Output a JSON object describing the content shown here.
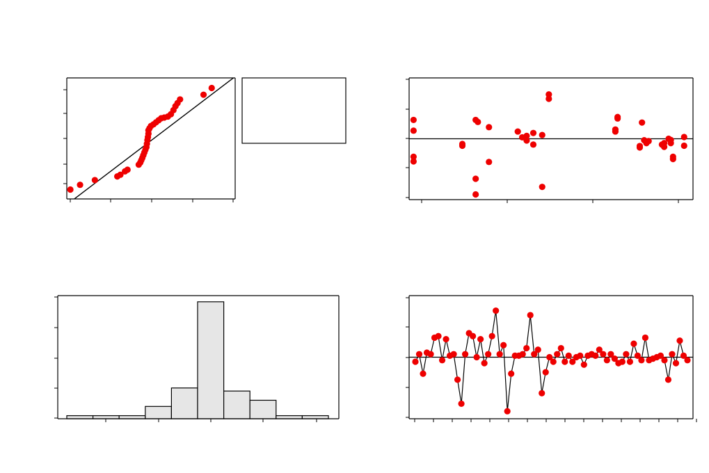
{
  "colors": {
    "point": "#ee0000",
    "line": "#000000",
    "bar_fill": "#e6e6e6",
    "frame": "#000000",
    "background": "#ffffff"
  },
  "chart_data": [
    {
      "type": "scatter",
      "subtype": "normal-probability-plot",
      "title": "",
      "xlabel": "",
      "ylabel": "",
      "xlim": [
        -1.6,
        1.7
      ],
      "ylim": [
        -1.7,
        1.9
      ],
      "fit_line": [
        [
          -1.6,
          -1.87
        ],
        [
          1.7,
          1.94
        ]
      ],
      "points": [
        [
          -1.53,
          -1.42
        ],
        [
          -1.34,
          -1.28
        ],
        [
          -1.05,
          -1.14
        ],
        [
          -0.61,
          -1.03
        ],
        [
          -0.55,
          -0.98
        ],
        [
          -0.46,
          -0.88
        ],
        [
          -0.41,
          -0.83
        ],
        [
          -0.19,
          -0.68
        ],
        [
          -0.16,
          -0.62
        ],
        [
          -0.14,
          -0.55
        ],
        [
          -0.12,
          -0.48
        ],
        [
          -0.1,
          -0.4
        ],
        [
          -0.08,
          -0.32
        ],
        [
          -0.06,
          -0.24
        ],
        [
          -0.04,
          -0.16
        ],
        [
          -0.03,
          -0.06
        ],
        [
          -0.02,
          0.05
        ],
        [
          -0.01,
          0.14
        ],
        [
          0.0,
          0.24
        ],
        [
          0.0,
          0.34
        ],
        [
          0.02,
          0.4
        ],
        [
          0.05,
          0.47
        ],
        [
          0.1,
          0.52
        ],
        [
          0.15,
          0.58
        ],
        [
          0.2,
          0.64
        ],
        [
          0.25,
          0.7
        ],
        [
          0.31,
          0.72
        ],
        [
          0.38,
          0.75
        ],
        [
          0.44,
          0.82
        ],
        [
          0.49,
          0.94
        ],
        [
          0.53,
          1.06
        ],
        [
          0.57,
          1.15
        ],
        [
          0.62,
          1.26
        ],
        [
          1.08,
          1.4
        ],
        [
          1.24,
          1.6
        ]
      ]
    },
    {
      "type": "legend-box",
      "entries": []
    },
    {
      "type": "scatter",
      "subtype": "residuals-vs-fits",
      "title": "",
      "xlabel": "",
      "ylabel": "",
      "xlim": [
        -0.6,
        5.8
      ],
      "ylim": [
        -2.1,
        2.1
      ],
      "reference_y": 0,
      "points": [
        [
          -0.5,
          0.65
        ],
        [
          -0.5,
          0.28
        ],
        [
          -0.5,
          -0.62
        ],
        [
          -0.5,
          -0.78
        ],
        [
          0.6,
          -0.18
        ],
        [
          0.6,
          -0.24
        ],
        [
          0.9,
          0.65
        ],
        [
          0.95,
          0.58
        ],
        [
          0.9,
          -1.38
        ],
        [
          0.9,
          -1.92
        ],
        [
          1.2,
          0.4
        ],
        [
          1.2,
          -0.8
        ],
        [
          1.85,
          0.25
        ],
        [
          1.95,
          0.05
        ],
        [
          2.05,
          0.1
        ],
        [
          2.05,
          -0.06
        ],
        [
          2.2,
          0.2
        ],
        [
          2.2,
          -0.2
        ],
        [
          2.4,
          0.13
        ],
        [
          2.55,
          1.53
        ],
        [
          2.55,
          1.38
        ],
        [
          2.4,
          -1.66
        ],
        [
          4.1,
          0.75
        ],
        [
          4.1,
          0.7
        ],
        [
          4.05,
          0.32
        ],
        [
          4.05,
          0.25
        ],
        [
          4.65,
          0.56
        ],
        [
          4.6,
          -0.25
        ],
        [
          4.6,
          -0.3
        ],
        [
          4.7,
          -0.05
        ],
        [
          4.75,
          -0.15
        ],
        [
          4.8,
          -0.08
        ],
        [
          5.1,
          -0.2
        ],
        [
          5.15,
          -0.28
        ],
        [
          5.25,
          0.0
        ],
        [
          5.3,
          -0.04
        ],
        [
          5.3,
          -0.15
        ],
        [
          5.35,
          -0.62
        ],
        [
          5.35,
          -0.7
        ],
        [
          5.6,
          0.06
        ],
        [
          5.6,
          -0.24
        ],
        [
          5.15,
          -0.15
        ]
      ]
    },
    {
      "type": "bar",
      "subtype": "histogram",
      "title": "",
      "xlabel": "",
      "ylabel": "",
      "ylim": [
        0,
        20
      ],
      "values": [
        0.5,
        0.5,
        0.5,
        2,
        5,
        19,
        4.5,
        3,
        0.5,
        0.5
      ]
    },
    {
      "type": "line",
      "subtype": "residuals-vs-order",
      "title": "",
      "xlabel": "",
      "ylabel": "",
      "ylim": [
        -2.05,
        2.05
      ],
      "reference_y": 0,
      "values": [
        -0.15,
        0.1,
        -0.55,
        0.15,
        0.1,
        0.65,
        0.7,
        -0.1,
        0.6,
        0.05,
        0.1,
        -0.75,
        -1.55,
        0.1,
        0.8,
        0.7,
        0.0,
        0.6,
        -0.2,
        0.1,
        0.7,
        1.55,
        0.1,
        0.4,
        -1.8,
        -0.55,
        0.05,
        0.05,
        0.1,
        0.3,
        1.4,
        0.1,
        0.25,
        -1.2,
        -0.5,
        0.0,
        -0.15,
        0.1,
        0.3,
        -0.15,
        0.05,
        -0.15,
        0.0,
        0.05,
        -0.25,
        0.05,
        0.1,
        0.05,
        0.25,
        0.1,
        -0.1,
        0.1,
        -0.05,
        -0.2,
        -0.15,
        0.1,
        -0.15,
        0.45,
        0.05,
        -0.1,
        0.65,
        -0.1,
        -0.05,
        0.0,
        0.05,
        -0.1,
        -0.75,
        0.1,
        -0.2,
        0.55,
        0.05,
        -0.1
      ]
    }
  ]
}
